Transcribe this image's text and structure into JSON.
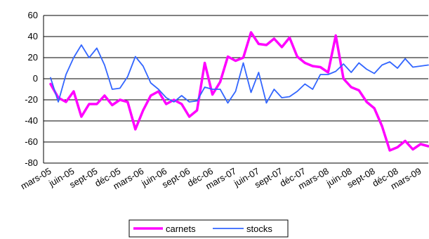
{
  "chart_data": {
    "type": "line",
    "x": [
      "mars-05",
      "avr-05",
      "mai-05",
      "juin-05",
      "juil-05",
      "août-05",
      "sept-05",
      "oct-05",
      "nov-05",
      "déc-05",
      "janv-06",
      "févr-06",
      "mars-06",
      "avr-06",
      "mai-06",
      "juin-06",
      "juil-06",
      "août-06",
      "sept-06",
      "oct-06",
      "nov-06",
      "déc-06",
      "janv-07",
      "févr-07",
      "mars-07",
      "avr-07",
      "mai-07",
      "juin-07",
      "juil-07",
      "août-07",
      "sept-07",
      "oct-07",
      "nov-07",
      "déc-07",
      "janv-08",
      "févr-08",
      "mars-08",
      "avr-08",
      "mai-08",
      "juin-08",
      "juil-08",
      "août-08",
      "sept-08",
      "oct-08",
      "nov-08",
      "déc-08",
      "janv-09",
      "févr-09",
      "mars-09",
      "avr-09"
    ],
    "xtick_labels": [
      "mars-05",
      "juin-05",
      "sept-05",
      "déc-05",
      "mars-06",
      "juin-06",
      "sept-06",
      "déc-06",
      "mars-07",
      "juin-07",
      "sept-07",
      "déc-07",
      "mars-08",
      "juin-08",
      "sept-08",
      "déc-08",
      "mars-09"
    ],
    "series": [
      {
        "name": "carnets",
        "color": "#ff00ff",
        "values": [
          -5,
          -18,
          -22,
          -12,
          -36,
          -24,
          -24,
          -16,
          -25,
          -20,
          -22,
          -48,
          -30,
          -16,
          -12,
          -24,
          -20,
          -24,
          -36,
          -30,
          15,
          -15,
          -3,
          21,
          17,
          20,
          44,
          33,
          32,
          38,
          30,
          39,
          21,
          15,
          12,
          11,
          6,
          41,
          0,
          -8,
          -11,
          -22,
          -28,
          -45,
          -68,
          -65,
          -59,
          -67,
          -62,
          -64
        ],
        "line_width": 3.5
      },
      {
        "name": "stocks",
        "color": "#3366ff",
        "values": [
          1,
          -22,
          4,
          20,
          32,
          20,
          29,
          13,
          -10,
          -9,
          2,
          21,
          12,
          -4,
          -10,
          -18,
          -22,
          -16,
          -22,
          -21,
          -8,
          -10,
          -10,
          -23,
          -12,
          15,
          -13,
          6,
          -23,
          -10,
          -18,
          -17,
          -12,
          -5,
          -10,
          4,
          4,
          7,
          14,
          6,
          15,
          9,
          5,
          13,
          16,
          10,
          19,
          11,
          12,
          13
        ],
        "line_width": 1.8
      }
    ],
    "ylim": [
      -80,
      60
    ],
    "yticks": [
      -80,
      -60,
      -40,
      -20,
      0,
      20,
      40,
      60
    ],
    "grid": "horizontal",
    "legend": "bottom-center"
  }
}
